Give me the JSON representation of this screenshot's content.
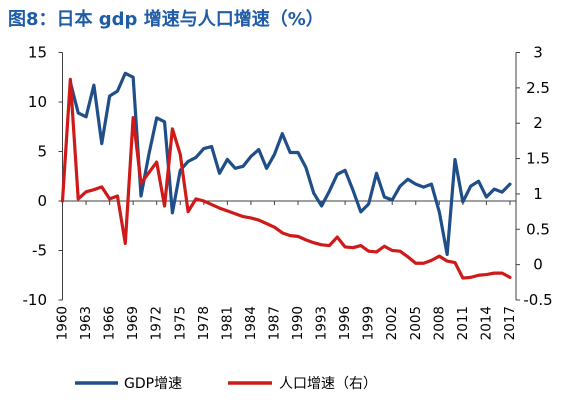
{
  "colors": {
    "title": "#1f5ca6",
    "axis": "#404040"
  },
  "chart_data": {
    "type": "line",
    "title": "图8：日本 gdp 增速与人口增速（%）",
    "x": [
      1960,
      1961,
      1962,
      1963,
      1964,
      1965,
      1966,
      1967,
      1968,
      1969,
      1970,
      1971,
      1972,
      1973,
      1974,
      1975,
      1976,
      1977,
      1978,
      1979,
      1980,
      1981,
      1982,
      1983,
      1984,
      1985,
      1986,
      1987,
      1988,
      1989,
      1990,
      1991,
      1992,
      1993,
      1994,
      1995,
      1996,
      1997,
      1998,
      1999,
      2000,
      2001,
      2002,
      2003,
      2004,
      2005,
      2006,
      2007,
      2008,
      2009,
      2010,
      2011,
      2012,
      2013,
      2014,
      2015,
      2016,
      2017
    ],
    "x_tick_labels": [
      "1960",
      "1963",
      "1966",
      "1969",
      "1972",
      "1975",
      "1978",
      "1981",
      "1984",
      "1987",
      "1990",
      "1993",
      "1996",
      "1999",
      "2002",
      "2005",
      "2008",
      "2011",
      "2014",
      "2017"
    ],
    "xlim": [
      1960,
      2017
    ],
    "y_left_ticks": [
      15,
      10,
      5,
      0,
      -5,
      -10
    ],
    "ylim_left": [
      -10,
      15
    ],
    "y_right_ticks": [
      3,
      2.5,
      2,
      1.5,
      1,
      0.5,
      0,
      -0.5
    ],
    "ylim_right": [
      -0.5,
      3
    ],
    "series": [
      {
        "name": "GDP增速",
        "axis": "left",
        "color": "#1f4e89",
        "values": [
          null,
          12.0,
          8.9,
          8.5,
          11.7,
          5.8,
          10.6,
          11.1,
          12.9,
          12.5,
          0.5,
          4.7,
          8.4,
          8.0,
          -1.2,
          3.1,
          4.0,
          4.4,
          5.3,
          5.5,
          2.8,
          4.2,
          3.3,
          3.5,
          4.5,
          5.2,
          3.3,
          4.7,
          6.8,
          4.9,
          4.9,
          3.4,
          0.8,
          -0.5,
          1.0,
          2.7,
          3.1,
          1.1,
          -1.1,
          -0.3,
          2.8,
          0.4,
          0.1,
          1.5,
          2.2,
          1.7,
          1.4,
          1.7,
          -1.1,
          -5.4,
          4.2,
          -0.1,
          1.5,
          2.0,
          0.4,
          1.2,
          0.9,
          1.7
        ]
      },
      {
        "name": "人口增速（右）",
        "axis": "right",
        "color": "#cf1a1a",
        "values": [
          0.9,
          2.62,
          0.93,
          1.03,
          1.06,
          1.1,
          0.93,
          0.97,
          0.3,
          2.08,
          1.15,
          1.3,
          1.45,
          0.83,
          1.92,
          1.56,
          0.75,
          0.93,
          0.9,
          0.85,
          0.8,
          0.76,
          0.72,
          0.68,
          0.66,
          0.63,
          0.58,
          0.53,
          0.45,
          0.41,
          0.4,
          0.35,
          0.31,
          0.28,
          0.27,
          0.39,
          0.25,
          0.24,
          0.27,
          0.19,
          0.18,
          0.26,
          0.2,
          0.19,
          0.11,
          0.02,
          0.02,
          0.06,
          0.12,
          0.05,
          0.03,
          -0.19,
          -0.18,
          -0.15,
          -0.14,
          -0.12,
          -0.12,
          -0.18
        ]
      }
    ],
    "legend": "bottom",
    "grid": false
  }
}
